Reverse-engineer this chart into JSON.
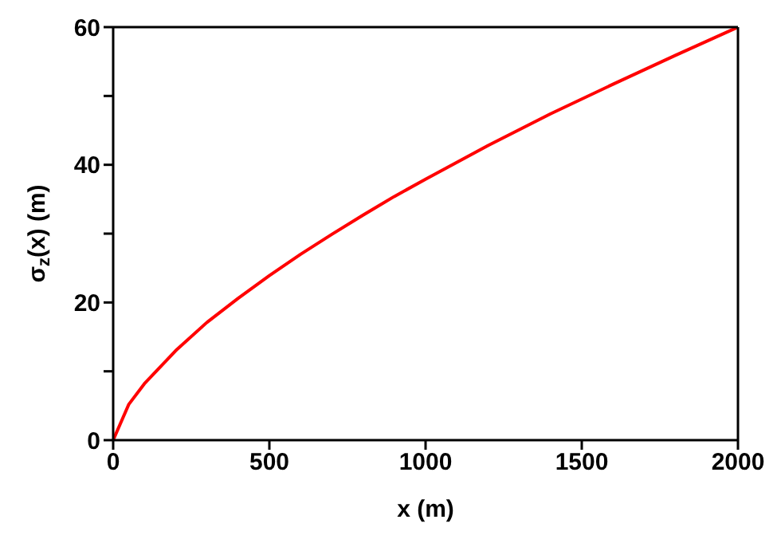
{
  "chart_data": {
    "type": "line",
    "xlabel": "x (m)",
    "ylabel": "σ$_{z}$(x) (m)",
    "x": [
      0,
      50,
      100,
      200,
      300,
      400,
      500,
      600,
      700,
      800,
      900,
      1000,
      1200,
      1400,
      1600,
      1800,
      2000
    ],
    "series": [
      {
        "color": "#ff0000",
        "values": [
          0,
          5.2,
          8.2,
          13.0,
          17.1,
          20.6,
          23.9,
          27.0,
          29.9,
          32.7,
          35.4,
          37.9,
          42.8,
          47.4,
          51.7,
          55.9,
          60
        ]
      }
    ],
    "xlim": [
      0,
      2000
    ],
    "xticks": [
      0,
      500,
      1000,
      1500,
      2000
    ],
    "ylim": [
      0,
      60
    ],
    "yticks": [
      0,
      {
        "value": 10,
        "label": null
      },
      20,
      {
        "value": 30,
        "label": null
      },
      40,
      {
        "value": 50,
        "label": null
      },
      60
    ],
    "grid": false,
    "legend": false,
    "marker": "none",
    "line_style": "solid"
  }
}
